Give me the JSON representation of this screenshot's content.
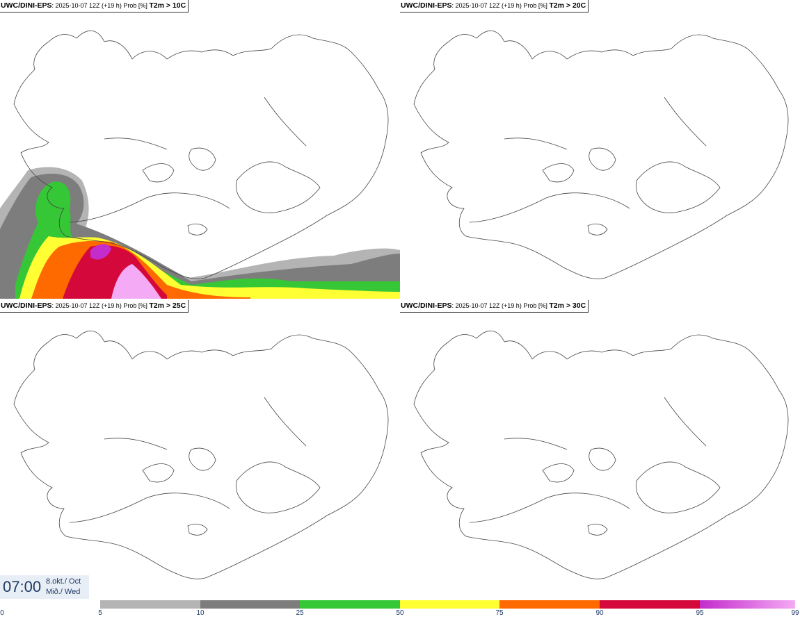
{
  "panels": [
    {
      "model": "UWC/DINI-EPS",
      "run": ": 2025-10-07 12Z (+19 h) Prob [%] ",
      "param": "T2m > 10C",
      "probability_field": true
    },
    {
      "model": "UWC/DINI-EPS",
      "run": ": 2025-10-07 12Z (+19 h) Prob [%] ",
      "param": "T2m > 20C",
      "probability_field": false
    },
    {
      "model": "UWC/DINI-EPS",
      "run": ": 2025-10-07 12Z (+19 h) Prob [%] ",
      "param": "T2m > 25C",
      "probability_field": false
    },
    {
      "model": "UWC/DINI-EPS",
      "run": ": 2025-10-07 12Z (+19 h) Prob [%] ",
      "param": "T2m > 30C",
      "probability_field": false
    }
  ],
  "time": {
    "clock": "07:00",
    "date": "8.okt./ Oct",
    "weekday": "Mið./ Wed"
  },
  "colorbar": {
    "labels": [
      "0",
      "5",
      "10",
      "25",
      "50",
      "75",
      "90",
      "95",
      "99"
    ],
    "colors": [
      "#ffffff",
      "#b4b4b4",
      "#7d7d7d",
      "#35c735",
      "#ffff33",
      "#ff6a00",
      "#d4083a",
      "#c42ccc",
      "#f4aaf4"
    ]
  }
}
